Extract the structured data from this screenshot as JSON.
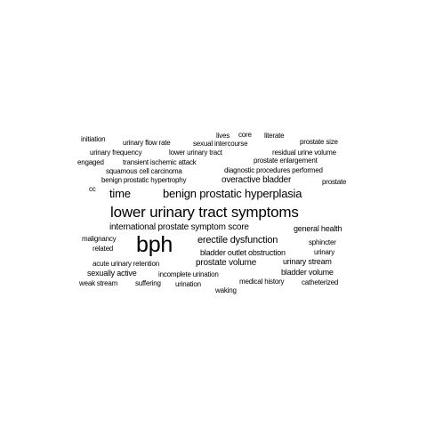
{
  "words": [
    {
      "text": "lower urinary tract symptoms",
      "weight": 10
    },
    {
      "text": "bph",
      "weight": 10
    },
    {
      "text": "benign prostatic hyperplasia",
      "weight": 8
    },
    {
      "text": "time",
      "weight": 7
    },
    {
      "text": "erectile dysfunction",
      "weight": 6
    },
    {
      "text": "international prostate symptom score",
      "weight": 5
    },
    {
      "text": "overactive bladder",
      "weight": 5
    },
    {
      "text": "prostate volume",
      "weight": 5
    },
    {
      "text": "bladder outlet obstruction",
      "weight": 4
    },
    {
      "text": "urinary stream",
      "weight": 4
    },
    {
      "text": "bladder volume",
      "weight": 4
    },
    {
      "text": "sexually active",
      "weight": 4
    },
    {
      "text": "general health",
      "weight": 4
    },
    {
      "text": "lives",
      "weight": 3
    },
    {
      "text": "core",
      "weight": 3
    },
    {
      "text": "literate",
      "weight": 3
    },
    {
      "text": "initiation",
      "weight": 3
    },
    {
      "text": "urinary flow rate",
      "weight": 3
    },
    {
      "text": "sexual intercourse",
      "weight": 3
    },
    {
      "text": "prostate size",
      "weight": 3
    },
    {
      "text": "urinary frequency",
      "weight": 3
    },
    {
      "text": "lower urinary tract",
      "weight": 3
    },
    {
      "text": "residual urine volume",
      "weight": 3
    },
    {
      "text": "engaged",
      "weight": 3
    },
    {
      "text": "transient ischemic attack",
      "weight": 3
    },
    {
      "text": "prostate enlargement",
      "weight": 3
    },
    {
      "text": "squamous cell carcinoma",
      "weight": 3
    },
    {
      "text": "diagnostic procedures performed",
      "weight": 3
    },
    {
      "text": "benign prostatic hypertrophy",
      "weight": 3
    },
    {
      "text": "prostate",
      "weight": 3
    },
    {
      "text": "cc",
      "weight": 3
    },
    {
      "text": "malignancy",
      "weight": 3
    },
    {
      "text": "sphincter",
      "weight": 3
    },
    {
      "text": "related",
      "weight": 3
    },
    {
      "text": "urinary",
      "weight": 3
    },
    {
      "text": "acute urinary retention",
      "weight": 3
    },
    {
      "text": "incomplete urination",
      "weight": 3
    },
    {
      "text": "weak stream",
      "weight": 3
    },
    {
      "text": "suffering",
      "weight": 3
    },
    {
      "text": "urination",
      "weight": 3
    },
    {
      "text": "medical history",
      "weight": 3
    },
    {
      "text": "catheterized",
      "weight": 3
    },
    {
      "text": "waking",
      "weight": 3
    }
  ]
}
